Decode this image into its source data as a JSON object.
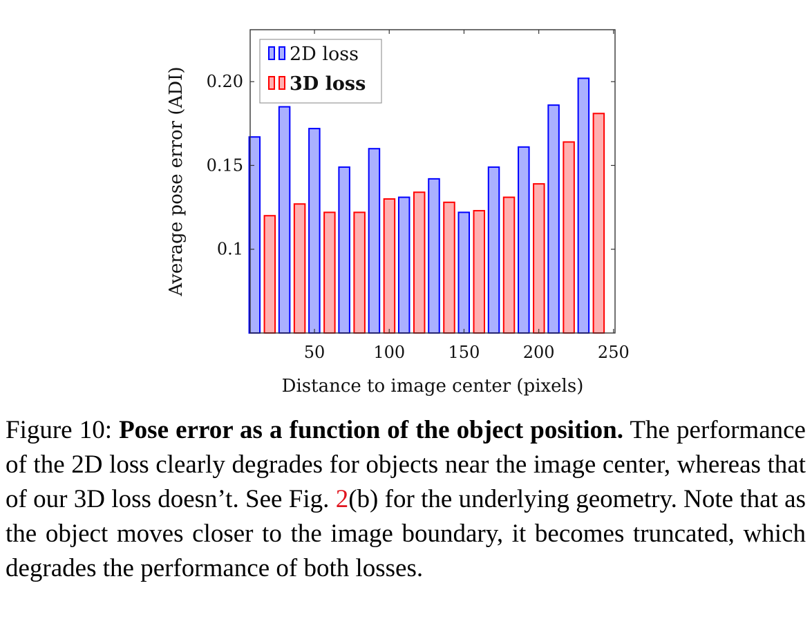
{
  "chart_data": {
    "type": "bar",
    "x": [
      15,
      35,
      55,
      75,
      95,
      115,
      135,
      155,
      175,
      195,
      215,
      235
    ],
    "series": [
      {
        "name": "2D loss",
        "color": "#0000ff",
        "fill": "#aab0ff",
        "values": [
          0.167,
          0.185,
          0.172,
          0.149,
          0.16,
          0.131,
          0.142,
          0.122,
          0.149,
          0.161,
          0.186,
          0.202
        ]
      },
      {
        "name": "3D loss",
        "color": "#ff0000",
        "fill": "#ffb0b0",
        "values": [
          0.12,
          0.127,
          0.122,
          0.122,
          0.13,
          0.134,
          0.128,
          0.123,
          0.131,
          0.139,
          0.164,
          0.181
        ]
      }
    ],
    "xticks": [
      50,
      100,
      150,
      200,
      250
    ],
    "yticks": [
      0.1,
      0.15,
      0.2
    ],
    "ytick_labels": [
      "0.1",
      "0.15",
      "0.20"
    ],
    "xlabel": "Distance to image center (pixels)",
    "ylabel": "Average pose error (ADI)",
    "xlim": [
      7,
      251
    ],
    "ylim": [
      0.05,
      0.231
    ],
    "legend": "top-left",
    "grid": false
  },
  "caption": {
    "prefix": "Figure 10: ",
    "bold": "Pose error as a function of the object position.",
    "text1": " The performance of the 2D loss clearly degrades for objects near the image center, whereas that of our 3D loss doesn’t. See Fig. ",
    "ref": "2",
    "text2": "(b) for the underlying geometry. Note that as the object moves closer to the image boundary, it becomes truncated, which degrades the performance of both losses."
  }
}
